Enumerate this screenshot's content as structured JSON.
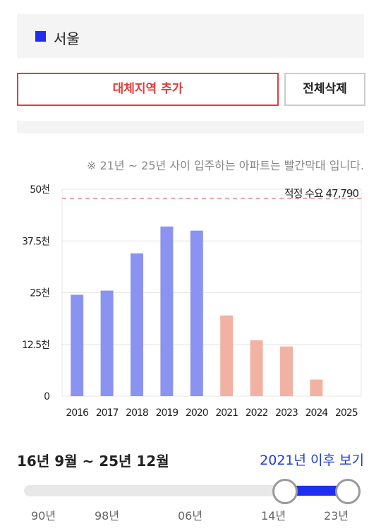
{
  "region": {
    "name": "서울",
    "color": "#1f2ff0"
  },
  "buttons": {
    "add_region": "대체지역 추가",
    "delete_all": "전체삭제"
  },
  "chart_note": "※ 21년 ~ 25년 사이 입주하는 아파트는 빨간막대 입니다.",
  "chart_data": {
    "type": "bar",
    "categories": [
      "2016",
      "2017",
      "2018",
      "2019",
      "2020",
      "2021",
      "2022",
      "2023",
      "2024",
      "2025"
    ],
    "values": [
      24500,
      25500,
      34500,
      41000,
      40000,
      19500,
      13500,
      12000,
      4000,
      0
    ],
    "bar_colors": [
      "#8b93f0",
      "#8b93f0",
      "#8b93f0",
      "#8b93f0",
      "#8b93f0",
      "#f2b2a3",
      "#f2b2a3",
      "#f2b2a3",
      "#f2b2a3",
      "#f2b2a3"
    ],
    "ylim": [
      0,
      50000
    ],
    "y_ticks": [
      0,
      12500,
      25000,
      37500,
      50000
    ],
    "y_tick_labels": [
      "0",
      "12.5천",
      "25천",
      "37.5천",
      "50천"
    ],
    "reference_line": {
      "value": 47790,
      "label": "적정 수요 47,790",
      "color": "#e06060"
    },
    "grid": true
  },
  "period": {
    "label": "16년 9월 ~ 25년 12월",
    "link": "2021년 이후 보기"
  },
  "slider": {
    "ticks": [
      "90년",
      "98년",
      "06년",
      "14년",
      "23년"
    ],
    "selected_start": "16년 9월",
    "selected_end": "25년 12월",
    "accent": "#1f2ff0"
  }
}
